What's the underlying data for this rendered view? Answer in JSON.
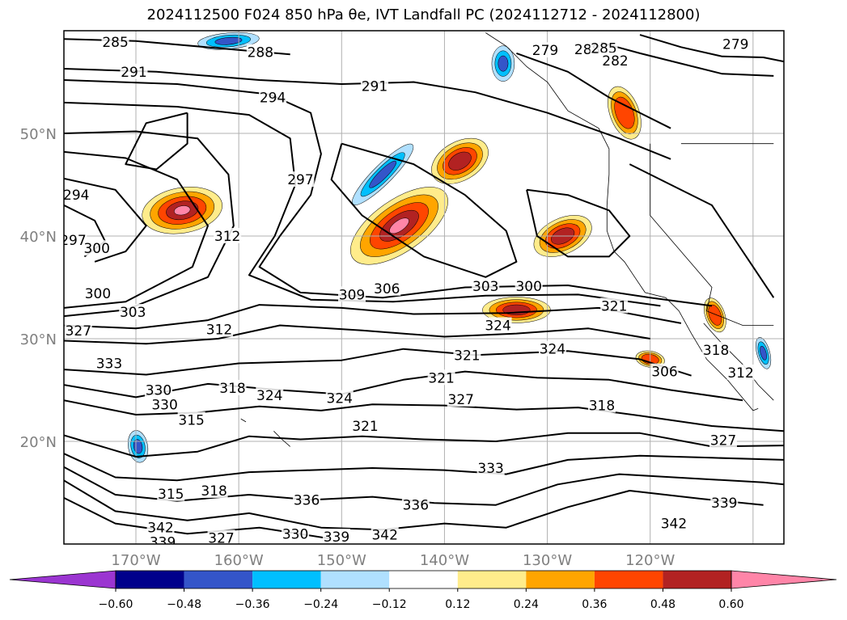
{
  "title": "2024112500 F024 850 hPa θe, IVT Landfall PC (2024112712 - 2024112800)",
  "chart_data": {
    "type": "contour",
    "title": "2024112500 F024 850 hPa θe, IVT Landfall PC (2024112712 - 2024112800)",
    "variable_contours": "850 hPa θe (K)",
    "variable_fill": "IVT Landfall PC",
    "lon_ticks": [
      "170°W",
      "160°W",
      "150°W",
      "140°W",
      "130°W",
      "120°W"
    ],
    "lat_ticks": [
      "50°N",
      "40°N",
      "30°N",
      "20°N"
    ],
    "lon_range": [
      -177,
      -107
    ],
    "lat_range": [
      10,
      60
    ],
    "grid": true,
    "colorbar": {
      "orientation": "horizontal",
      "extend": "both",
      "ticks": [
        "−0.60",
        "−0.48",
        "−0.36",
        "−0.24",
        "−0.12",
        "0.12",
        "0.24",
        "0.36",
        "0.48",
        "0.60"
      ],
      "colors": [
        "#9b35d1",
        "#00008b",
        "#3455c9",
        "#00bfff",
        "#b0e0ff",
        "#ffffff",
        "#ffec8b",
        "#ffa500",
        "#ff4500",
        "#b22222",
        "#ff85a8"
      ]
    },
    "contour_labels": [
      {
        "text": "285",
        "lon": -172.0,
        "lat": 58.9
      },
      {
        "text": "291",
        "lon": -170.2,
        "lat": 56.0
      },
      {
        "text": "294",
        "lon": -156.7,
        "lat": 53.5
      },
      {
        "text": "297",
        "lon": -154.0,
        "lat": 45.5
      },
      {
        "text": "291",
        "lon": -146.8,
        "lat": 54.6
      },
      {
        "text": "294",
        "lon": -175.8,
        "lat": 44.0
      },
      {
        "text": "297",
        "lon": -176.1,
        "lat": 39.6
      },
      {
        "text": "300",
        "lon": -173.8,
        "lat": 38.8
      },
      {
        "text": "300",
        "lon": -173.7,
        "lat": 34.4
      },
      {
        "text": "303",
        "lon": -170.3,
        "lat": 32.6
      },
      {
        "text": "327",
        "lon": -175.6,
        "lat": 30.8
      },
      {
        "text": "333",
        "lon": -172.6,
        "lat": 27.6
      },
      {
        "text": "330",
        "lon": -167.8,
        "lat": 25.0
      },
      {
        "text": "330",
        "lon": -167.2,
        "lat": 23.6
      },
      {
        "text": "312",
        "lon": -161.1,
        "lat": 40.0
      },
      {
        "text": "312",
        "lon": -161.9,
        "lat": 30.9
      },
      {
        "text": "309",
        "lon": -149.0,
        "lat": 34.3
      },
      {
        "text": "306",
        "lon": -145.6,
        "lat": 34.9
      },
      {
        "text": "303",
        "lon": -136.0,
        "lat": 35.1
      },
      {
        "text": "300",
        "lon": -131.8,
        "lat": 35.1
      },
      {
        "text": "318",
        "lon": -160.6,
        "lat": 25.2
      },
      {
        "text": "324",
        "lon": -157.0,
        "lat": 24.5
      },
      {
        "text": "315",
        "lon": -164.6,
        "lat": 22.1
      },
      {
        "text": "324",
        "lon": -150.2,
        "lat": 24.2
      },
      {
        "text": "321",
        "lon": -147.7,
        "lat": 21.5
      },
      {
        "text": "321",
        "lon": -140.3,
        "lat": 26.2
      },
      {
        "text": "327",
        "lon": -138.4,
        "lat": 24.1
      },
      {
        "text": "321",
        "lon": -137.8,
        "lat": 28.4
      },
      {
        "text": "324",
        "lon": -134.8,
        "lat": 31.3
      },
      {
        "text": "324",
        "lon": -129.5,
        "lat": 29.0
      },
      {
        "text": "321",
        "lon": -123.5,
        "lat": 33.2
      },
      {
        "text": "318",
        "lon": -124.7,
        "lat": 23.5
      },
      {
        "text": "306",
        "lon": -118.6,
        "lat": 26.8
      },
      {
        "text": "318",
        "lon": -113.6,
        "lat": 28.9
      },
      {
        "text": "312",
        "lon": -111.2,
        "lat": 26.7
      },
      {
        "text": "327",
        "lon": -112.9,
        "lat": 20.1
      },
      {
        "text": "333",
        "lon": -135.5,
        "lat": 17.4
      },
      {
        "text": "336",
        "lon": -142.8,
        "lat": 13.8
      },
      {
        "text": "339",
        "lon": -150.5,
        "lat": 10.7
      },
      {
        "text": "342",
        "lon": -145.8,
        "lat": 10.9
      },
      {
        "text": "339",
        "lon": -112.8,
        "lat": 14.0
      },
      {
        "text": "342",
        "lon": -117.7,
        "lat": 12.0
      },
      {
        "text": "315",
        "lon": -166.6,
        "lat": 14.9
      },
      {
        "text": "318",
        "lon": -162.4,
        "lat": 15.2
      },
      {
        "text": "330",
        "lon": -154.5,
        "lat": 11.0
      },
      {
        "text": "336",
        "lon": -153.4,
        "lat": 14.3
      },
      {
        "text": "342",
        "lon": -167.6,
        "lat": 11.6
      },
      {
        "text": "339",
        "lon": -167.4,
        "lat": 10.2
      },
      {
        "text": "327",
        "lon": -161.7,
        "lat": 10.6
      },
      {
        "text": "279",
        "lon": -130.2,
        "lat": 58.1
      },
      {
        "text": "288",
        "lon": -126.1,
        "lat": 58.2
      },
      {
        "text": "285",
        "lon": -124.5,
        "lat": 58.3
      },
      {
        "text": "282",
        "lon": -123.4,
        "lat": 57.1
      },
      {
        "text": "279",
        "lon": -111.7,
        "lat": 58.7
      },
      {
        "text": "288",
        "lon": -157.9,
        "lat": 57.9
      }
    ],
    "positive_regions": [
      {
        "lon": -165.5,
        "lat": 42.5,
        "level": 0.6
      },
      {
        "lon": -144.4,
        "lat": 41.0,
        "level": 0.6
      },
      {
        "lon": -138.5,
        "lat": 47.3,
        "level": 0.48
      },
      {
        "lon": -133.0,
        "lat": 32.8,
        "level": 0.48
      },
      {
        "lon": -128.5,
        "lat": 40.0,
        "level": 0.48
      },
      {
        "lon": -122.5,
        "lat": 52.0,
        "level": 0.36
      },
      {
        "lon": -113.7,
        "lat": 32.3,
        "level": 0.36
      },
      {
        "lon": -120.0,
        "lat": 28.0,
        "level": 0.36
      }
    ],
    "negative_regions": [
      {
        "lon": -161.0,
        "lat": 59.0,
        "level": -0.36
      },
      {
        "lon": -146.0,
        "lat": 46.0,
        "level": -0.36
      },
      {
        "lon": -134.3,
        "lat": 56.8,
        "level": -0.36
      },
      {
        "lon": -169.8,
        "lat": 19.5,
        "level": -0.36
      },
      {
        "lon": -109.0,
        "lat": 28.6,
        "level": -0.36
      }
    ]
  }
}
